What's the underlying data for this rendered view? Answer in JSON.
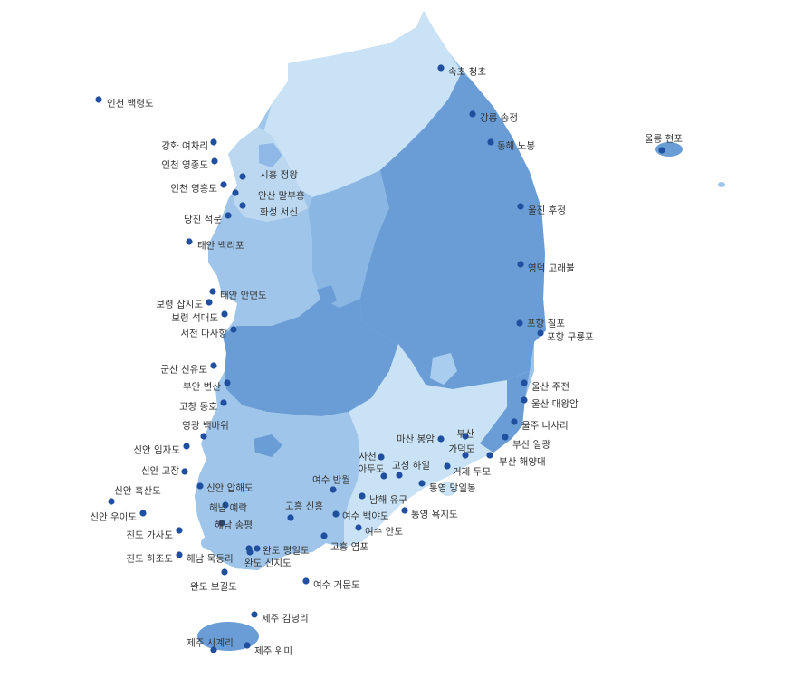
{
  "colors": {
    "region_light": "#c9e2f5",
    "region_mid": "#9fc5ea",
    "region_dark": "#6a9dd6",
    "marker": "#1f4f9e",
    "label": "#333333"
  },
  "stations": [
    {
      "id": "s01",
      "name": "속초 청초"
    },
    {
      "id": "s02",
      "name": "인천 백령도"
    },
    {
      "id": "s03",
      "name": "강릉 송정"
    },
    {
      "id": "s04",
      "name": "울릉 현포"
    },
    {
      "id": "s05",
      "name": "강화 여차리"
    },
    {
      "id": "s06",
      "name": "동해 노봉"
    },
    {
      "id": "s07",
      "name": "인천 영종도"
    },
    {
      "id": "s08",
      "name": "시흥 정왕"
    },
    {
      "id": "s09",
      "name": "인천 영흥도"
    },
    {
      "id": "s10",
      "name": "안산 말부흥"
    },
    {
      "id": "s11",
      "name": "화성 서신"
    },
    {
      "id": "s12",
      "name": "당진 석문"
    },
    {
      "id": "s13",
      "name": "울진 후정"
    },
    {
      "id": "s14",
      "name": "태안 백리포"
    },
    {
      "id": "s15",
      "name": "영덕 고래불"
    },
    {
      "id": "s16",
      "name": "태안 안면도"
    },
    {
      "id": "s17",
      "name": "보령 삽시도"
    },
    {
      "id": "s18",
      "name": "보령 석대도"
    },
    {
      "id": "s19",
      "name": "서천 다사항"
    },
    {
      "id": "s20",
      "name": "포항 칠포"
    },
    {
      "id": "s21",
      "name": "포항 구룡포"
    },
    {
      "id": "s22",
      "name": "군산 선유도"
    },
    {
      "id": "s23",
      "name": "부안 변산"
    },
    {
      "id": "s24",
      "name": "울산 주전"
    },
    {
      "id": "s25",
      "name": "고창 동호"
    },
    {
      "id": "s26",
      "name": "울산 대왕암"
    },
    {
      "id": "s27",
      "name": "영광 백바위"
    },
    {
      "id": "s28",
      "name": "울주 나사리"
    },
    {
      "id": "s29",
      "name": "마산 봉암"
    },
    {
      "id": "s30",
      "name": "부산"
    },
    {
      "id": "s31",
      "name": "부산 일광"
    },
    {
      "id": "s32",
      "name": "신안 임자도"
    },
    {
      "id": "s33",
      "name": "가덕도"
    },
    {
      "id": "s34",
      "name": "사천"
    },
    {
      "id": "s35",
      "name": "부산 해양대"
    },
    {
      "id": "s36",
      "name": "아두도"
    },
    {
      "id": "s37",
      "name": "고성 하일"
    },
    {
      "id": "s38",
      "name": "거제 두모"
    },
    {
      "id": "s39",
      "name": "신안 고장"
    },
    {
      "id": "s40",
      "name": "신안 압해도"
    },
    {
      "id": "s41",
      "name": "여수 반월"
    },
    {
      "id": "s42",
      "name": "통영 망일봉"
    },
    {
      "id": "s43",
      "name": "신안 흑산도"
    },
    {
      "id": "s44",
      "name": "남해 유구"
    },
    {
      "id": "s45",
      "name": "해남 예락"
    },
    {
      "id": "s46",
      "name": "고흥 신흥"
    },
    {
      "id": "s47",
      "name": "신안 우이도"
    },
    {
      "id": "s48",
      "name": "여수 백야도"
    },
    {
      "id": "s49",
      "name": "통영 욕지도"
    },
    {
      "id": "s50",
      "name": "해남 송평"
    },
    {
      "id": "s51",
      "name": "진도 가사도"
    },
    {
      "id": "s52",
      "name": "여수 안도"
    },
    {
      "id": "s53",
      "name": "고흥 염포"
    },
    {
      "id": "s54",
      "name": "완도 평일도"
    },
    {
      "id": "s55",
      "name": "진도 하조도"
    },
    {
      "id": "s56",
      "name": "해남 묵동리"
    },
    {
      "id": "s57",
      "name": "완도 신지도"
    },
    {
      "id": "s58",
      "name": "완도 보길도"
    },
    {
      "id": "s59",
      "name": "여수 거문도"
    },
    {
      "id": "s60",
      "name": "제주 김녕리"
    },
    {
      "id": "s61",
      "name": "제주 사계리"
    },
    {
      "id": "s62",
      "name": "제주 위미"
    }
  ]
}
